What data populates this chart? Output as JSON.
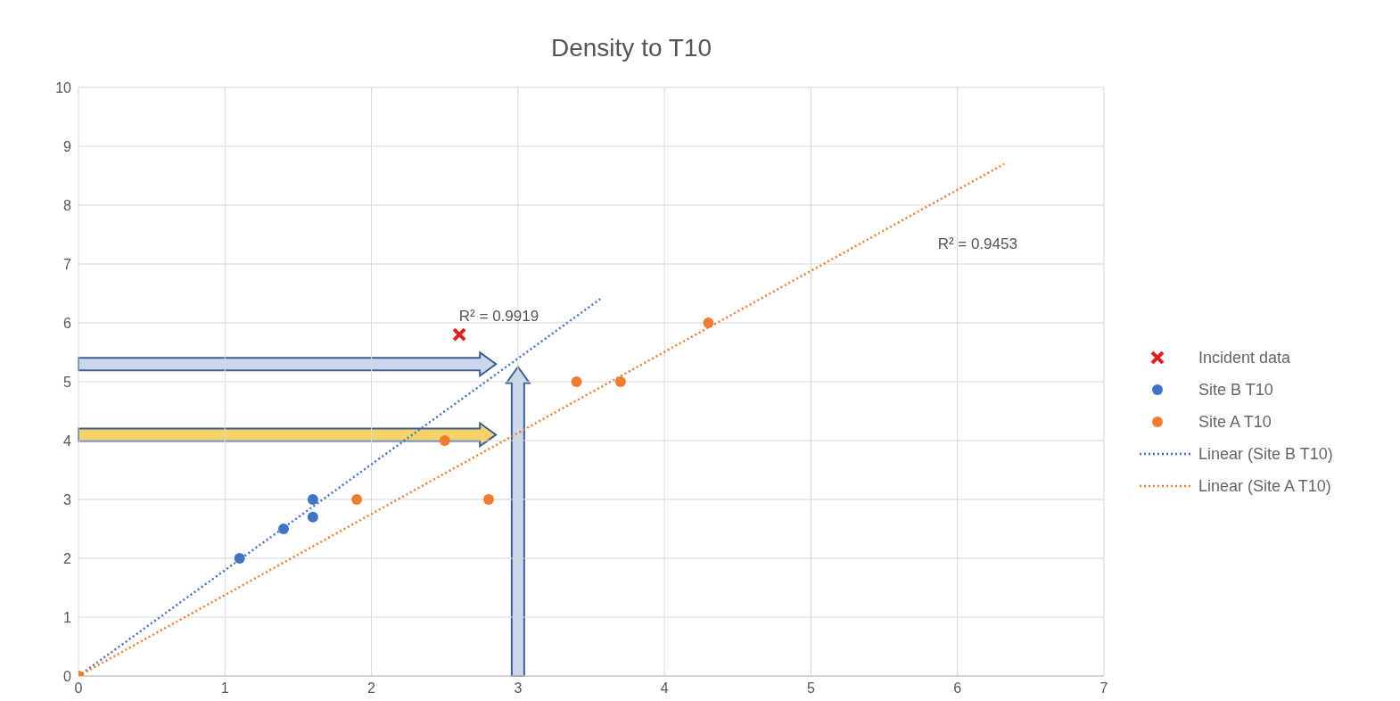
{
  "chart_data": {
    "type": "scatter",
    "title": "Density to T10",
    "xlim": [
      0,
      7
    ],
    "xticks": [
      0,
      1,
      2,
      3,
      4,
      5,
      6,
      7
    ],
    "ylim": [
      0,
      10
    ],
    "yticks": [
      0,
      1,
      2,
      3,
      4,
      5,
      6,
      7,
      8,
      9,
      10
    ],
    "grid": true,
    "legend": "right",
    "series": [
      {
        "name": "Incident data",
        "marker": "cross",
        "color": "#e02020",
        "x": [
          2.6
        ],
        "values": [
          5.8
        ]
      },
      {
        "name": "Site B T10",
        "marker": "circle",
        "color": "#4472c4",
        "x": [
          1.1,
          1.4,
          1.6,
          1.6
        ],
        "values": [
          2,
          2.5,
          3,
          2.7
        ]
      },
      {
        "name": "Site A T10",
        "marker": "circle",
        "color": "#ed7d31",
        "x": [
          0,
          1.9,
          2.5,
          2.8,
          3.4,
          3.7,
          4.3
        ],
        "values": [
          0,
          3,
          4,
          3,
          5,
          5,
          6
        ]
      },
      {
        "name": "Linear (Site B T10)",
        "type": "line",
        "marker": "none",
        "line_style": "dotted",
        "color": "#4472c4",
        "x": [
          0,
          3.57
        ],
        "values": [
          0,
          6.42
        ]
      },
      {
        "name": "Linear (Site A T10)",
        "type": "line",
        "marker": "none",
        "line_style": "dotted",
        "color": "#ed7d31",
        "x": [
          0,
          6.32
        ],
        "values": [
          0,
          8.7
        ]
      }
    ],
    "annotations": [
      "R² = 0.9919",
      "R² = 0.9453"
    ]
  }
}
